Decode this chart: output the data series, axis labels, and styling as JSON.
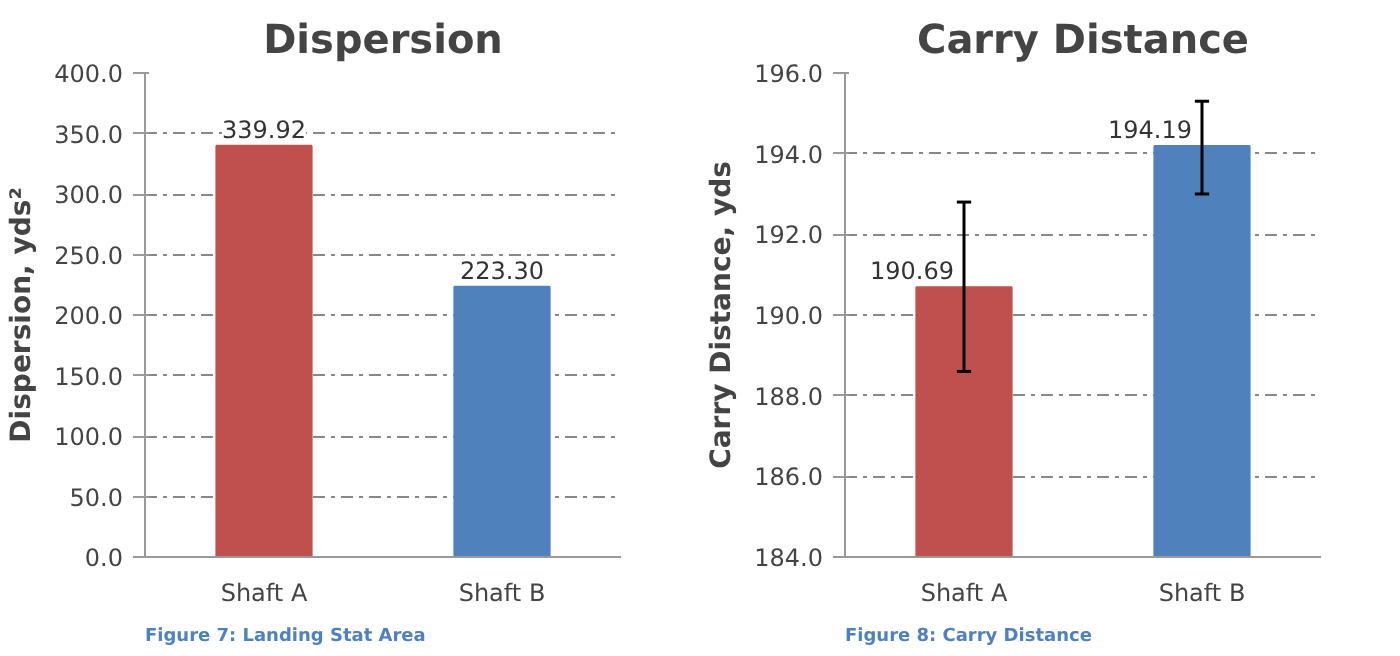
{
  "chart_data": [
    {
      "type": "bar",
      "title": "Dispersion",
      "ylabel": "Dispersion, yds²",
      "categories": [
        "Shaft A",
        "Shaft B"
      ],
      "values": [
        339.92,
        223.3
      ],
      "colors": [
        "#c0504d",
        "#4f81bd"
      ],
      "value_labels": [
        "339.92",
        "223.30"
      ],
      "ylim": [
        0,
        400
      ],
      "yticks": [
        {
          "value": 0,
          "label": "0.0"
        },
        {
          "value": 50,
          "label": "50.0"
        },
        {
          "value": 100,
          "label": "100.0"
        },
        {
          "value": 150,
          "label": "150.0"
        },
        {
          "value": 200,
          "label": "200.0"
        },
        {
          "value": 250,
          "label": "250.0"
        },
        {
          "value": 300,
          "label": "300.0"
        },
        {
          "value": 350,
          "label": "350.0"
        },
        {
          "value": 400,
          "label": "400.0"
        }
      ],
      "grid": "y",
      "annotations": [
        "Figure 7: Landing Stat Area"
      ]
    },
    {
      "type": "bar",
      "title": "Carry Distance",
      "ylabel": "Carry Distance, yds",
      "categories": [
        "Shaft A",
        "Shaft B"
      ],
      "values": [
        190.69,
        194.19
      ],
      "colors": [
        "#c0504d",
        "#4f81bd"
      ],
      "value_labels": [
        "190.69",
        "194.19"
      ],
      "errors": [
        [
          188.6,
          192.8
        ],
        [
          193.0,
          195.3
        ]
      ],
      "ylim": [
        184,
        196
      ],
      "yticks": [
        {
          "value": 184,
          "label": "184.0"
        },
        {
          "value": 186,
          "label": "186.0"
        },
        {
          "value": 188,
          "label": "188.0"
        },
        {
          "value": 190,
          "label": "190.0"
        },
        {
          "value": 192,
          "label": "192.0"
        },
        {
          "value": 194,
          "label": "194.0"
        },
        {
          "value": 196,
          "label": "196.0"
        }
      ],
      "grid": "y",
      "annotations": [
        "Figure 8: Carry Distance"
      ]
    }
  ]
}
